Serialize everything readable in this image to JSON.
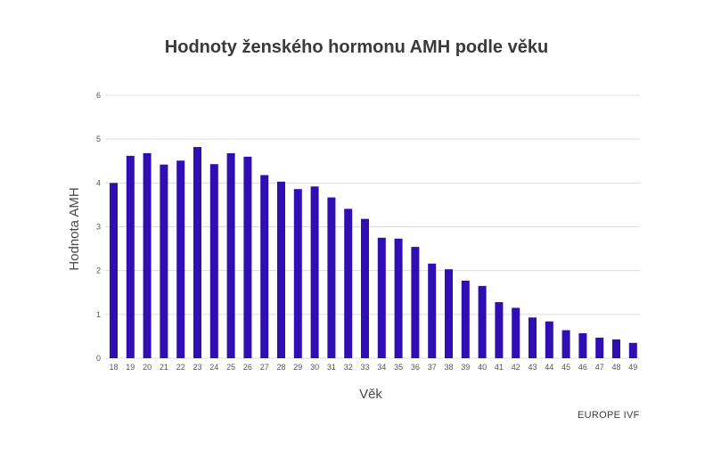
{
  "source_label": "EUROPE IVF",
  "colors": {
    "bar": "#2f0fb4",
    "grid": "#dcdcdc",
    "text": "#3a3a3a"
  },
  "chart_data": {
    "type": "bar",
    "title": "Hodnoty ženského hormonu AMH podle věku",
    "xlabel": "Věk",
    "ylabel": "Hodnota AMH",
    "ylim": [
      0,
      6
    ],
    "yticks": [
      0,
      1,
      2,
      3,
      4,
      5,
      6
    ],
    "grid": true,
    "categories": [
      "18",
      "19",
      "20",
      "21",
      "22",
      "23",
      "24",
      "25",
      "26",
      "27",
      "28",
      "29",
      "30",
      "31",
      "32",
      "33",
      "34",
      "35",
      "36",
      "37",
      "38",
      "39",
      "40",
      "41",
      "42",
      "43",
      "44",
      "45",
      "46",
      "47",
      "48",
      "49"
    ],
    "series": [
      {
        "values": [
          4.0,
          4.62,
          4.68,
          4.42,
          4.51,
          4.82,
          4.43,
          4.68,
          4.6,
          4.18,
          4.03,
          3.86,
          3.92,
          3.67,
          3.41,
          3.18,
          2.75,
          2.73,
          2.54,
          2.16,
          2.03,
          1.77,
          1.65,
          1.28,
          1.15,
          0.93,
          0.84,
          0.64,
          0.57,
          0.47,
          0.43,
          0.35
        ]
      }
    ]
  }
}
